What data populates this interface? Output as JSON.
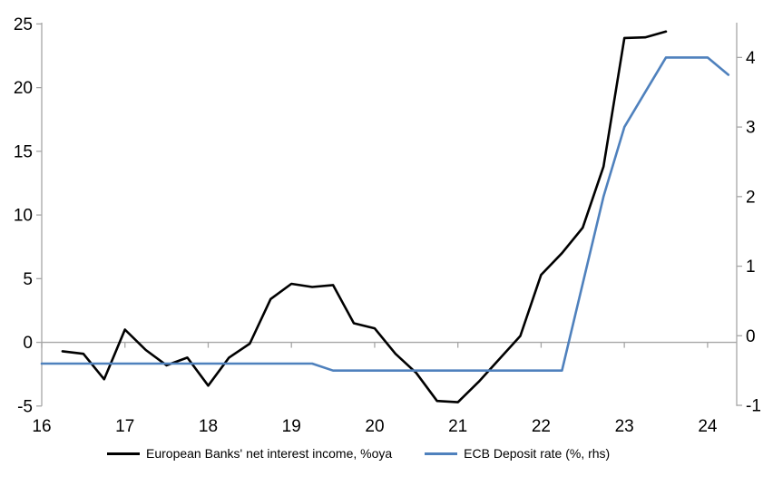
{
  "chart_data": {
    "type": "line",
    "title": "",
    "xlabel": "",
    "ylabel_left": "",
    "ylabel_right": "",
    "grid": "zero-line-only",
    "legend_position": "bottom",
    "colors": {
      "axis": "#a6a6a6",
      "text": "#000000",
      "background": "#ffffff"
    },
    "x_axis": {
      "min": 16,
      "max": 24.35,
      "ticks": [
        16,
        17,
        18,
        19,
        20,
        21,
        22,
        23,
        24
      ]
    },
    "left_axis": {
      "min": -5,
      "max": 25.1,
      "ticks": [
        -5,
        0,
        5,
        10,
        15,
        20,
        25
      ]
    },
    "right_axis": {
      "min": -1.01,
      "max": 4.5,
      "ticks": [
        -1,
        0,
        1,
        2,
        3,
        4
      ]
    },
    "series": [
      {
        "name": "European Banks' net interest income, %oya",
        "color": "#000000",
        "axis": "left",
        "x": [
          16.25,
          16.5,
          16.75,
          17.0,
          17.25,
          17.5,
          17.75,
          18.0,
          18.25,
          18.5,
          18.75,
          19.0,
          19.25,
          19.5,
          19.75,
          20.0,
          20.25,
          20.5,
          20.75,
          21.0,
          21.25,
          21.5,
          21.75,
          22.0,
          22.25,
          22.5,
          22.75,
          23.0,
          23.25,
          23.5
        ],
        "values": [
          -0.7,
          -0.9,
          -2.9,
          1.0,
          -0.6,
          -1.8,
          -1.2,
          -3.4,
          -1.2,
          -0.1,
          3.4,
          4.6,
          4.35,
          4.5,
          1.5,
          1.1,
          -0.9,
          -2.4,
          -4.6,
          -4.7,
          -3.1,
          -1.3,
          0.5,
          5.3,
          7.0,
          9.0,
          13.8,
          23.9,
          23.95,
          24.4
        ]
      },
      {
        "name": "ECB Deposit rate (%, rhs)",
        "color": "#4f81bd",
        "axis": "right",
        "x": [
          16.0,
          16.25,
          16.5,
          16.75,
          17.0,
          17.25,
          17.5,
          17.75,
          18.0,
          18.25,
          18.5,
          18.75,
          19.0,
          19.25,
          19.5,
          19.75,
          20.0,
          20.25,
          20.5,
          20.75,
          21.0,
          21.25,
          21.5,
          21.75,
          22.0,
          22.25,
          22.5,
          22.75,
          23.0,
          23.25,
          23.5,
          23.75,
          24.0,
          24.25
        ],
        "values": [
          -0.4,
          -0.4,
          -0.4,
          -0.4,
          -0.4,
          -0.4,
          -0.4,
          -0.4,
          -0.4,
          -0.4,
          -0.4,
          -0.4,
          -0.4,
          -0.4,
          -0.5,
          -0.5,
          -0.5,
          -0.5,
          -0.5,
          -0.5,
          -0.5,
          -0.5,
          -0.5,
          -0.5,
          -0.5,
          -0.5,
          0.75,
          2.0,
          3.0,
          3.5,
          4.0,
          4.0,
          4.0,
          3.75
        ]
      }
    ]
  }
}
